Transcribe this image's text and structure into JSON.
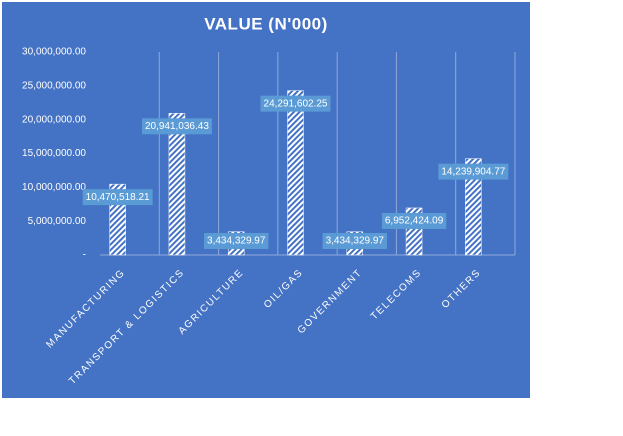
{
  "chart_data": {
    "type": "bar",
    "title": "VALUE (N'000)",
    "categories": [
      "MANUFACTURING",
      "TRANSPORT & LOGISTICS",
      "AGRICULTURE",
      "OIL/GAS",
      "GOVERNMENT",
      "TELECOMS",
      "OTHERS"
    ],
    "values": [
      10470518.21,
      20941036.43,
      3434329.97,
      24291602.25,
      3434329.97,
      6952424.09,
      14239904.77
    ],
    "value_labels": [
      "10,470,518.21",
      "20,941,036.43",
      "3,434,329.97",
      "24,291,602.25",
      "3,434,329.97",
      "6,952,424.09",
      "14,239,904.77"
    ],
    "color": "#ffffff",
    "ylim": [
      0,
      30000000
    ],
    "yticks": [
      {
        "value": 0,
        "label": "-"
      },
      {
        "value": 5000000,
        "label": "5,000,000.00"
      },
      {
        "value": 10000000,
        "label": "10,000,000.00"
      },
      {
        "value": 15000000,
        "label": "15,000,000.00"
      },
      {
        "value": 20000000,
        "label": "20,000,000.00"
      },
      {
        "value": 25000000,
        "label": "25,000,000.00"
      },
      {
        "value": 30000000,
        "label": "30,000,000.00"
      }
    ],
    "grid": true
  }
}
